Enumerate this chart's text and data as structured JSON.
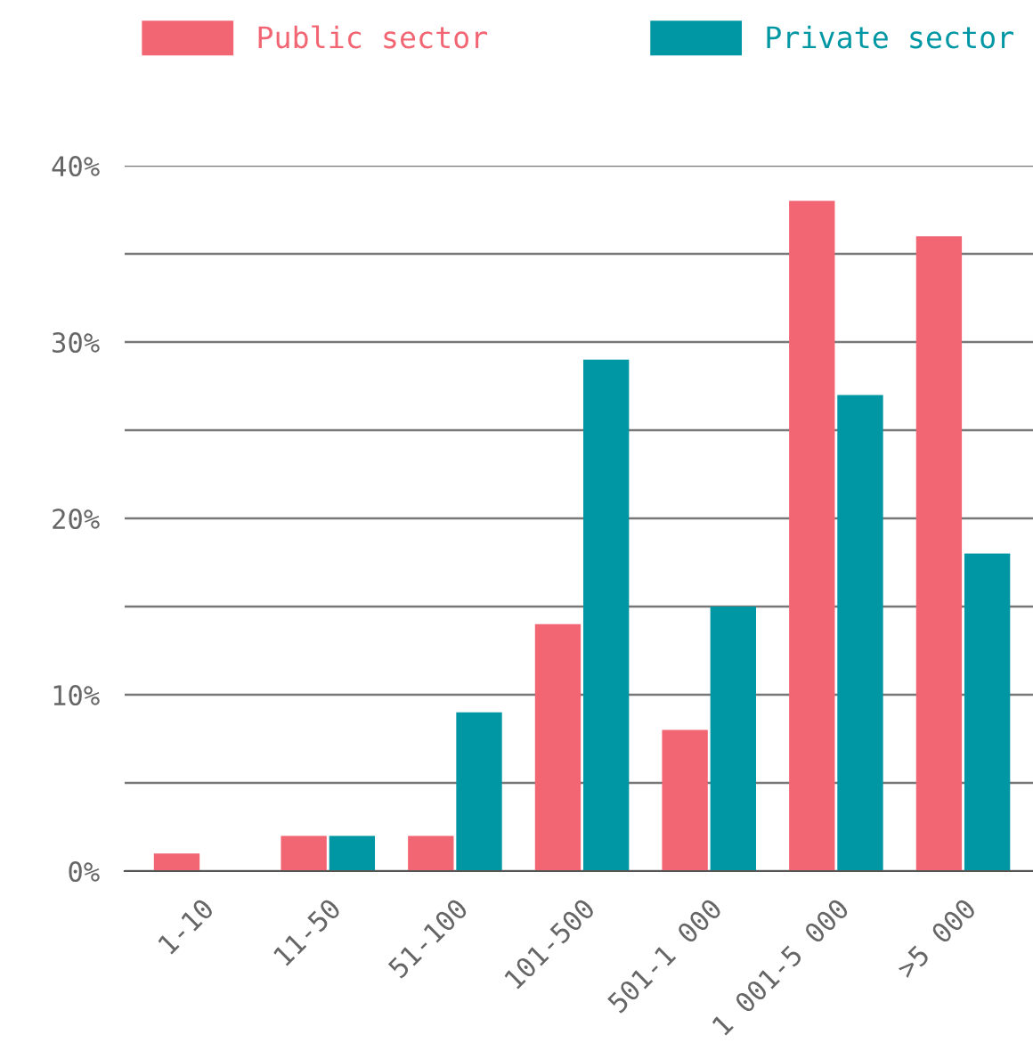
{
  "chart_data": {
    "type": "bar",
    "categories": [
      "1-10",
      "11-50",
      "51-100",
      "101-500",
      "501-1 000",
      "1 001-5 000",
      ">5 000"
    ],
    "series": [
      {
        "name": "Public sector",
        "color": "#f26674",
        "values": [
          1,
          2,
          2,
          14,
          8,
          38,
          36
        ]
      },
      {
        "name": "Private sector",
        "color": "#0097a4",
        "values": [
          0,
          2,
          9,
          29,
          15,
          27,
          18
        ]
      }
    ],
    "ylim": [
      0,
      40
    ],
    "yticks": [
      {
        "value": 0,
        "label": "0%"
      },
      {
        "value": 5,
        "label": null
      },
      {
        "value": 10,
        "label": "10%"
      },
      {
        "value": 15,
        "label": null
      },
      {
        "value": 20,
        "label": "20%"
      },
      {
        "value": 25,
        "label": null
      },
      {
        "value": 30,
        "label": "30%"
      },
      {
        "value": 35,
        "label": null
      },
      {
        "value": 40,
        "label": "40%"
      }
    ],
    "grid": "y",
    "legend": "top"
  }
}
